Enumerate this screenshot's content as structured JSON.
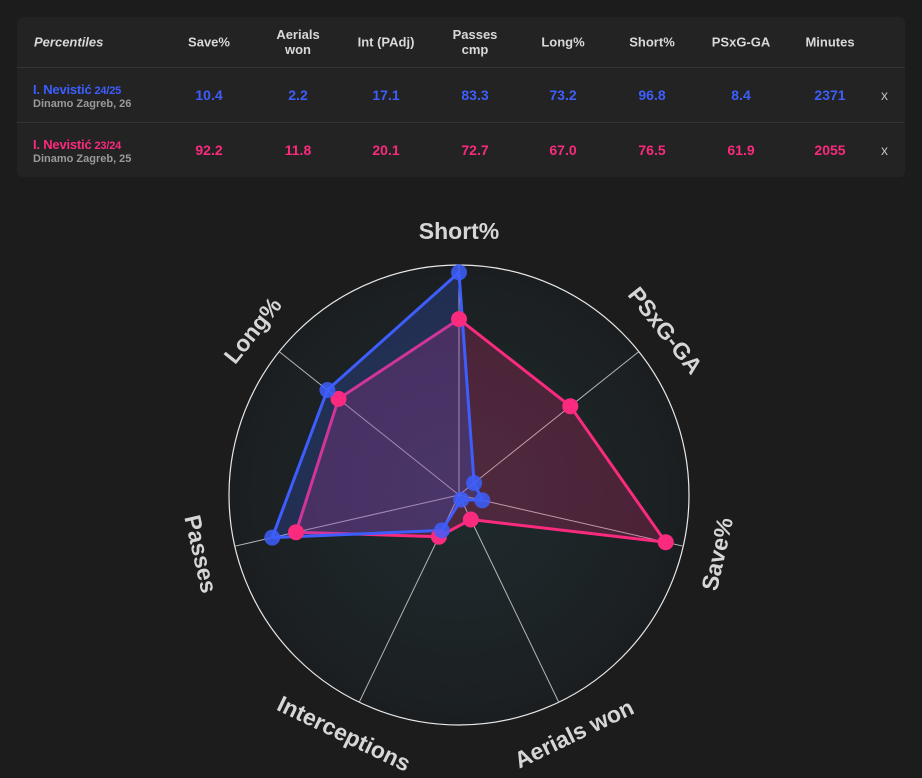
{
  "table": {
    "header": {
      "first": "Percentiles",
      "columns": [
        "Save%",
        "Aerials\nwon",
        "Int (PAdj)",
        "Passes\ncmp",
        "Long%",
        "Short%",
        "PSxG-GA",
        "Minutes"
      ]
    },
    "rows": [
      {
        "name": "I. Nevistić",
        "season": "24/25",
        "team": "Dinamo Zagreb, 26",
        "values": [
          "10.4",
          "2.2",
          "17.1",
          "83.3",
          "73.2",
          "96.8",
          "8.4",
          "2371"
        ],
        "remove_label": "x",
        "color": "#3d5efc"
      },
      {
        "name": "I. Nevistić",
        "season": "23/24",
        "team": "Dinamo Zagreb, 25",
        "values": [
          "92.2",
          "11.8",
          "20.1",
          "72.7",
          "67.0",
          "76.5",
          "61.9",
          "2055"
        ],
        "remove_label": "x",
        "color": "#fa2a7e"
      }
    ]
  },
  "chart_data": {
    "type": "radar",
    "axes": [
      "Short%",
      "PSxG-GA",
      "Save%",
      "Aerials won",
      "Interceptions",
      "Passes",
      "Long%"
    ],
    "range": [
      0,
      100
    ],
    "series": [
      {
        "name": "I. Nevistić 24/25",
        "color": "#3d5efc",
        "values": [
          96.8,
          8.4,
          10.4,
          2.2,
          17.1,
          83.3,
          73.2
        ]
      },
      {
        "name": "I. Nevistić 23/24",
        "color": "#fa2a7e",
        "values": [
          76.5,
          61.9,
          92.2,
          11.8,
          20.1,
          72.7,
          67.0
        ]
      }
    ]
  }
}
